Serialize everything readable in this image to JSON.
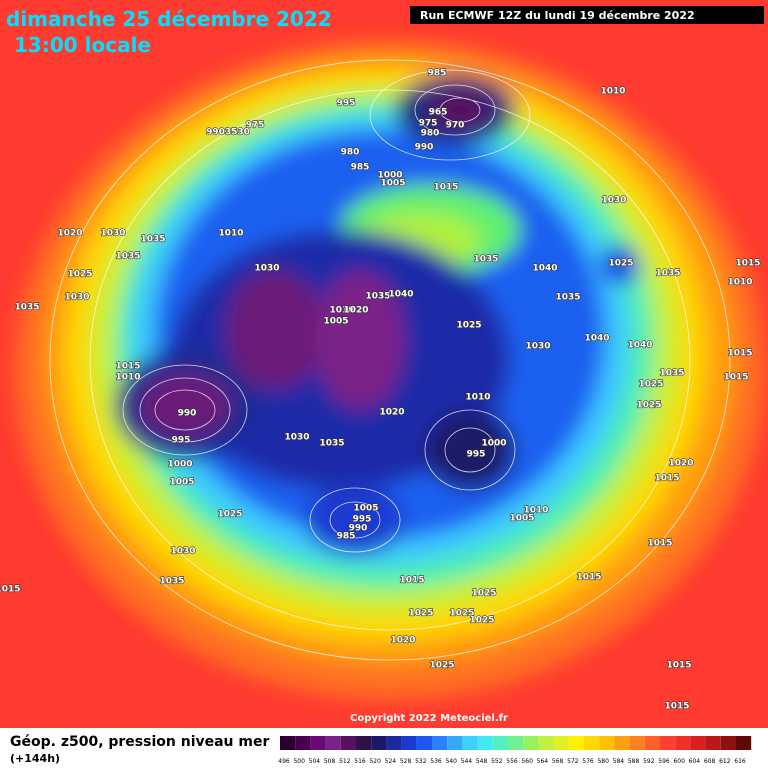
{
  "header": {
    "date": "dimanche 25 décembre 2022",
    "time": "13:00 locale",
    "run": "Run ECMWF 12Z du lundi 19 décembre 2022"
  },
  "footer": {
    "copyright": "Copyright 2022 Meteociel.fr",
    "legend_title": "Géop. z500, pression niveau mer",
    "lead_time": "(+144h)"
  },
  "legend": {
    "labels": [
      "496",
      "500",
      "504",
      "508",
      "512",
      "516",
      "520",
      "524",
      "528",
      "532",
      "536",
      "540",
      "544",
      "548",
      "552",
      "556",
      "560",
      "564",
      "568",
      "572",
      "576",
      "580",
      "584",
      "588",
      "592",
      "596",
      "600",
      "604",
      "608",
      "612",
      "616"
    ],
    "colors": [
      "#2a0030",
      "#4a0050",
      "#6a0a78",
      "#7a2288",
      "#5a1060",
      "#30104a",
      "#1a1a6a",
      "#1c2aa0",
      "#1a3ad0",
      "#1e58f0",
      "#2a80ff",
      "#34a8ff",
      "#3cd0ff",
      "#40eaf0",
      "#50f0c0",
      "#70f090",
      "#98f060",
      "#c0f040",
      "#e0f020",
      "#fff000",
      "#ffd800",
      "#ffc000",
      "#ffa010",
      "#ff8020",
      "#ff6028",
      "#ff4030",
      "#f03028",
      "#d82020",
      "#b81818",
      "#901010",
      "#600808"
    ]
  },
  "isobar_labels": [
    "985",
    "1010",
    "995",
    "975",
    "9903530",
    "965",
    "975",
    "970",
    "980",
    "980",
    "990",
    "985",
    "1000",
    "1005",
    "1015",
    "1030",
    "1020",
    "1030",
    "1035",
    "1010",
    "1035",
    "1035",
    "1040",
    "1025",
    "1035",
    "1015",
    "1025",
    "1030",
    "1030",
    "1035",
    "1040",
    "1010",
    "1020",
    "1005",
    "1035",
    "1035",
    "1025",
    "1040",
    "1040",
    "1030",
    "1015",
    "1010",
    "1035",
    "1025",
    "1010",
    "1025",
    "1020",
    "990",
    "995",
    "1030",
    "1035",
    "1000",
    "995",
    "1020",
    "1015",
    "1000",
    "1005",
    "1025",
    "1005",
    "1010",
    "1005",
    "995",
    "990",
    "985",
    "1015",
    "1030",
    "1035",
    "1015",
    "1015",
    "1015",
    "1025",
    "1025",
    "1025",
    "1025",
    "1020",
    "1025",
    "1015",
    "1015",
    "1010",
    "1015",
    "1015"
  ]
}
